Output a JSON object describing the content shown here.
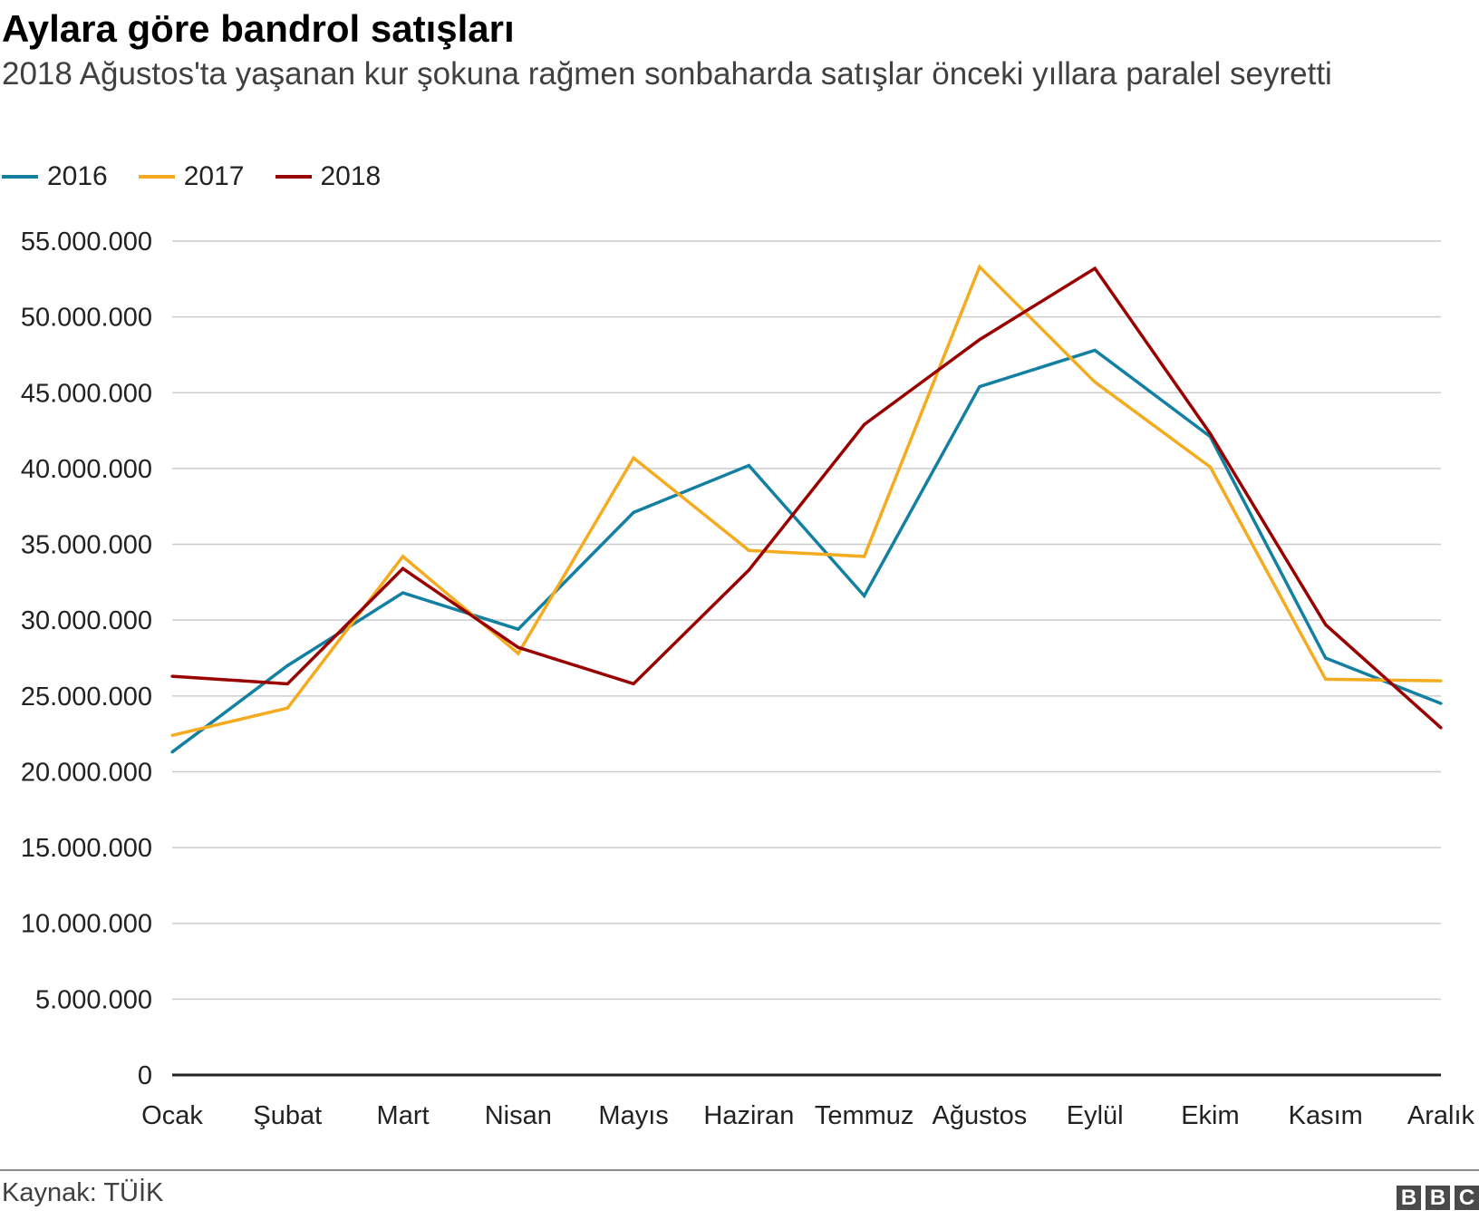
{
  "header": {
    "title": "Aylara göre bandrol satışları",
    "subtitle": "2018 Ağustos'ta yaşanan kur şokuna rağmen sonbaharda satışlar önceki yıllara paralel seyretti"
  },
  "legend": {
    "position": "top-left",
    "items": [
      {
        "label": "2016",
        "color": "#1380a1"
      },
      {
        "label": "2017",
        "color": "#f4ab1f"
      },
      {
        "label": "2018",
        "color": "#990000"
      }
    ]
  },
  "footer": {
    "source": "Kaynak: TÜİK",
    "logo_letters": [
      "B",
      "B",
      "C"
    ]
  },
  "chart_data": {
    "type": "line",
    "categories": [
      "Ocak",
      "Şubat",
      "Mart",
      "Nisan",
      "Mayıs",
      "Haziran",
      "Temmuz",
      "Ağustos",
      "Eylül",
      "Ekim",
      "Kasım",
      "Aralık"
    ],
    "y_ticks": [
      "0",
      "5.000.000",
      "10.000.000",
      "15.000.000",
      "20.000.000",
      "25.000.000",
      "30.000.000",
      "35.000.000",
      "40.000.000",
      "45.000.000",
      "50.000.000",
      "55.000.000"
    ],
    "ylim": [
      0,
      55000000
    ],
    "grid": true,
    "series": [
      {
        "name": "2016",
        "color": "#1380a1",
        "values": [
          21300000,
          27000000,
          31800000,
          29400000,
          37100000,
          40200000,
          31600000,
          45400000,
          47800000,
          42100000,
          27500000,
          24500000
        ]
      },
      {
        "name": "2017",
        "color": "#f4ab1f",
        "values": [
          22400000,
          24200000,
          34200000,
          27800000,
          40700000,
          34600000,
          34200000,
          53300000,
          45700000,
          40100000,
          26100000,
          26000000
        ]
      },
      {
        "name": "2018",
        "color": "#990000",
        "values": [
          26300000,
          25800000,
          33400000,
          28200000,
          25800000,
          33300000,
          42900000,
          48500000,
          53200000,
          42300000,
          29700000,
          22900000
        ]
      }
    ]
  }
}
